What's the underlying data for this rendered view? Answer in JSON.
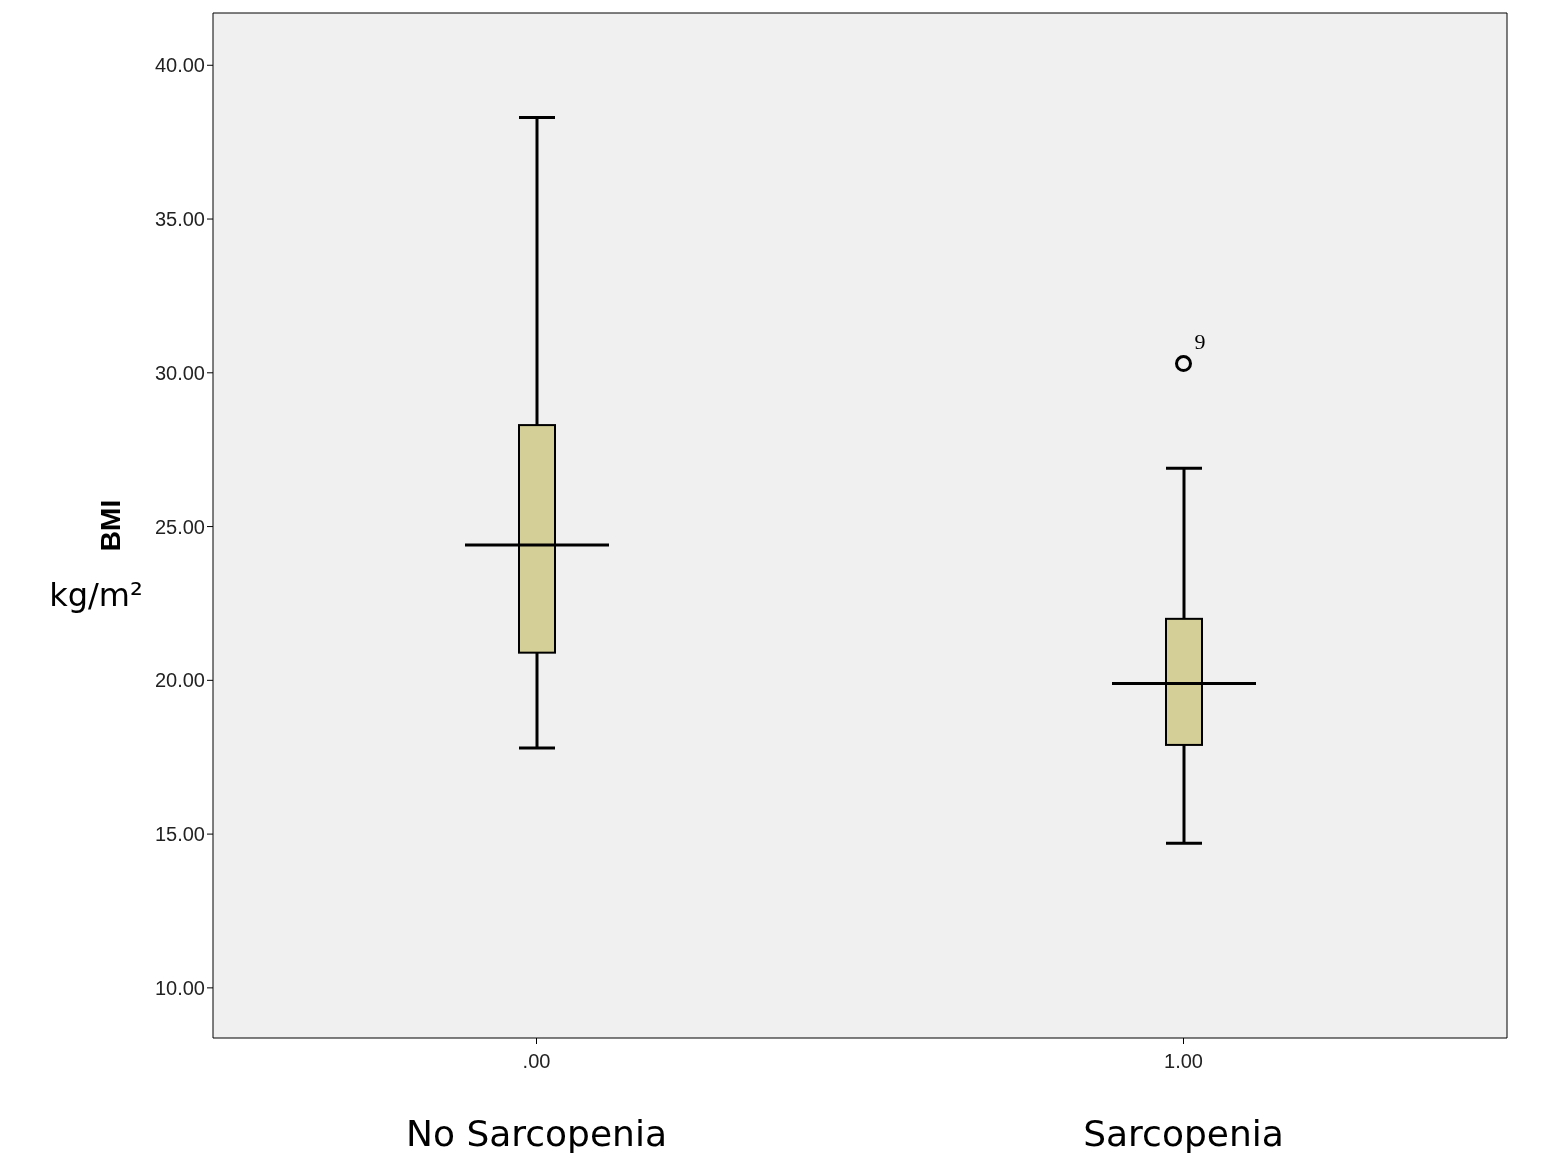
{
  "chart_data": {
    "type": "box",
    "categories": [
      ".00",
      "1.00"
    ],
    "ylabel": "BMI",
    "color": "#d4cf96",
    "ylim": [
      8.37,
      41.7
    ],
    "yticks": [
      {
        "value": 10,
        "label": "10.00"
      },
      {
        "value": 15,
        "label": "15.00"
      },
      {
        "value": 20,
        "label": "20.00"
      },
      {
        "value": 25,
        "label": "25.00"
      },
      {
        "value": 30,
        "label": "30.00"
      },
      {
        "value": 35,
        "label": "35.00"
      },
      {
        "value": 40,
        "label": "40.00"
      }
    ],
    "boxes": [
      {
        "low": 17.8,
        "q1": 20.9,
        "median": 24.4,
        "q3": 28.3,
        "high": 38.3
      },
      {
        "low": 14.7,
        "q1": 17.9,
        "median": 19.9,
        "q3": 22.0,
        "high": 26.9,
        "outliers": [
          30.3
        ]
      }
    ],
    "annotations": [
      "No Sarcopenia",
      "Sarcopenia",
      "kg/m²",
      "9"
    ]
  }
}
